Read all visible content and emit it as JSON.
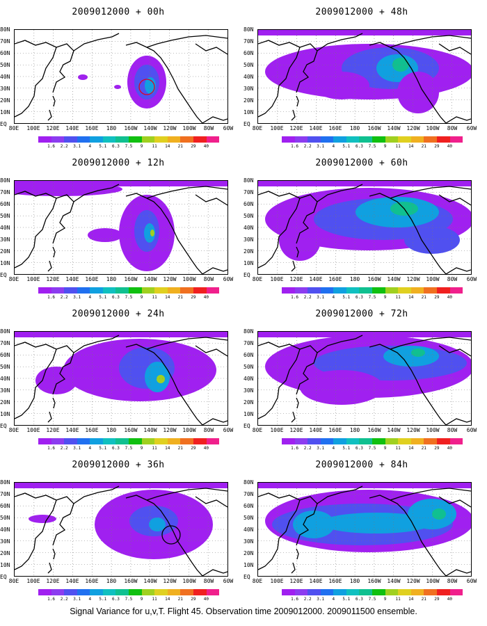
{
  "panels": [
    {
      "title": "2009012000 + 00h"
    },
    {
      "title": "2009012000 + 48h"
    },
    {
      "title": "2009012000 + 12h"
    },
    {
      "title": "2009012000 + 60h"
    },
    {
      "title": "2009012000 + 24h"
    },
    {
      "title": "2009012000 + 72h"
    },
    {
      "title": "2009012000 + 36h"
    },
    {
      "title": "2009012000 + 84h"
    }
  ],
  "y_ticks": [
    "80N",
    "70N",
    "60N",
    "50N",
    "40N",
    "30N",
    "20N",
    "10N",
    "EQ"
  ],
  "x_ticks": [
    "80E",
    "100E",
    "120E",
    "140E",
    "160E",
    "180",
    "160W",
    "140W",
    "120W",
    "100W",
    "80W",
    "60W"
  ],
  "colorbar": {
    "labels": [
      "1.6",
      "2.2",
      "3.1",
      "4",
      "5.1",
      "6.3",
      "7.5",
      "9",
      "11",
      "14",
      "21",
      "29",
      "40"
    ],
    "colors": [
      "#a020f0",
      "#8c3cf0",
      "#5050f0",
      "#2070f0",
      "#10a0e0",
      "#10c0c0",
      "#10c090",
      "#10c010",
      "#a0d020",
      "#e0d020",
      "#f0b020",
      "#f07020",
      "#f02020",
      "#f0208c"
    ]
  },
  "caption": "Signal Variance for u,v,T. Flight 45. Observation time 2009012000. 2009011500 ensemble."
}
